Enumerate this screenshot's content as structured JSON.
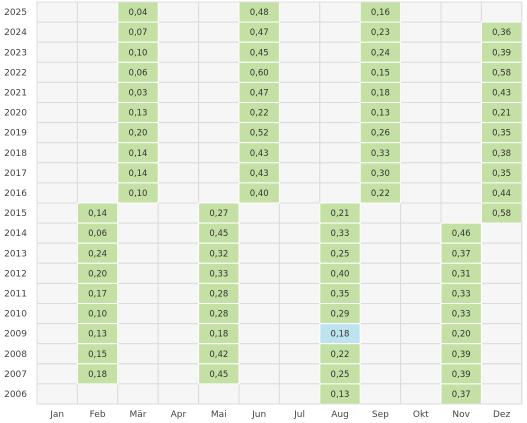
{
  "chart_data": {
    "type": "heatmap",
    "title": "",
    "xlabel": "",
    "ylabel": "",
    "grid": true,
    "x_categories": [
      "Jan",
      "Feb",
      "Mär",
      "Apr",
      "Mai",
      "Jun",
      "Jul",
      "Aug",
      "Sep",
      "Okt",
      "Nov",
      "Dez"
    ],
    "y_categories": [
      "2025",
      "2024",
      "2023",
      "2022",
      "2021",
      "2020",
      "2019",
      "2018",
      "2017",
      "2016",
      "2015",
      "2014",
      "2013",
      "2012",
      "2011",
      "2010",
      "2009",
      "2008",
      "2007",
      "2006"
    ],
    "cells": [
      {
        "year": "2025",
        "month": "Mär",
        "value": "0,04"
      },
      {
        "year": "2025",
        "month": "Jun",
        "value": "0,48"
      },
      {
        "year": "2025",
        "month": "Sep",
        "value": "0,16"
      },
      {
        "year": "2024",
        "month": "Mär",
        "value": "0,07"
      },
      {
        "year": "2024",
        "month": "Jun",
        "value": "0,47"
      },
      {
        "year": "2024",
        "month": "Sep",
        "value": "0,23"
      },
      {
        "year": "2024",
        "month": "Dez",
        "value": "0,36"
      },
      {
        "year": "2023",
        "month": "Mär",
        "value": "0,10"
      },
      {
        "year": "2023",
        "month": "Jun",
        "value": "0,45"
      },
      {
        "year": "2023",
        "month": "Sep",
        "value": "0,24"
      },
      {
        "year": "2023",
        "month": "Dez",
        "value": "0,39"
      },
      {
        "year": "2022",
        "month": "Mär",
        "value": "0,06"
      },
      {
        "year": "2022",
        "month": "Jun",
        "value": "0,60"
      },
      {
        "year": "2022",
        "month": "Sep",
        "value": "0,15"
      },
      {
        "year": "2022",
        "month": "Dez",
        "value": "0,58"
      },
      {
        "year": "2021",
        "month": "Mär",
        "value": "0,03"
      },
      {
        "year": "2021",
        "month": "Jun",
        "value": "0,47"
      },
      {
        "year": "2021",
        "month": "Sep",
        "value": "0,18"
      },
      {
        "year": "2021",
        "month": "Dez",
        "value": "0,43"
      },
      {
        "year": "2020",
        "month": "Mär",
        "value": "0,13"
      },
      {
        "year": "2020",
        "month": "Jun",
        "value": "0,22"
      },
      {
        "year": "2020",
        "month": "Sep",
        "value": "0,13"
      },
      {
        "year": "2020",
        "month": "Dez",
        "value": "0,21"
      },
      {
        "year": "2019",
        "month": "Mär",
        "value": "0,20"
      },
      {
        "year": "2019",
        "month": "Jun",
        "value": "0,52"
      },
      {
        "year": "2019",
        "month": "Sep",
        "value": "0,26"
      },
      {
        "year": "2019",
        "month": "Dez",
        "value": "0,35"
      },
      {
        "year": "2018",
        "month": "Mär",
        "value": "0,14"
      },
      {
        "year": "2018",
        "month": "Jun",
        "value": "0,43"
      },
      {
        "year": "2018",
        "month": "Sep",
        "value": "0,33"
      },
      {
        "year": "2018",
        "month": "Dez",
        "value": "0,38"
      },
      {
        "year": "2017",
        "month": "Mär",
        "value": "0,14"
      },
      {
        "year": "2017",
        "month": "Jun",
        "value": "0,43"
      },
      {
        "year": "2017",
        "month": "Sep",
        "value": "0,30"
      },
      {
        "year": "2017",
        "month": "Dez",
        "value": "0,35"
      },
      {
        "year": "2016",
        "month": "Mär",
        "value": "0,10"
      },
      {
        "year": "2016",
        "month": "Jun",
        "value": "0,40"
      },
      {
        "year": "2016",
        "month": "Sep",
        "value": "0,22"
      },
      {
        "year": "2016",
        "month": "Dez",
        "value": "0,44"
      },
      {
        "year": "2015",
        "month": "Feb",
        "value": "0,14"
      },
      {
        "year": "2015",
        "month": "Mai",
        "value": "0,27"
      },
      {
        "year": "2015",
        "month": "Aug",
        "value": "0,21"
      },
      {
        "year": "2015",
        "month": "Dez",
        "value": "0,58"
      },
      {
        "year": "2014",
        "month": "Feb",
        "value": "0,06"
      },
      {
        "year": "2014",
        "month": "Mai",
        "value": "0,45"
      },
      {
        "year": "2014",
        "month": "Aug",
        "value": "0,33"
      },
      {
        "year": "2014",
        "month": "Nov",
        "value": "0,46"
      },
      {
        "year": "2013",
        "month": "Feb",
        "value": "0,24"
      },
      {
        "year": "2013",
        "month": "Mai",
        "value": "0,32"
      },
      {
        "year": "2013",
        "month": "Aug",
        "value": "0,25"
      },
      {
        "year": "2013",
        "month": "Nov",
        "value": "0,37"
      },
      {
        "year": "2012",
        "month": "Feb",
        "value": "0,20"
      },
      {
        "year": "2012",
        "month": "Mai",
        "value": "0,33"
      },
      {
        "year": "2012",
        "month": "Aug",
        "value": "0,40"
      },
      {
        "year": "2012",
        "month": "Nov",
        "value": "0,31"
      },
      {
        "year": "2011",
        "month": "Feb",
        "value": "0,17"
      },
      {
        "year": "2011",
        "month": "Mai",
        "value": "0,28"
      },
      {
        "year": "2011",
        "month": "Aug",
        "value": "0,35"
      },
      {
        "year": "2011",
        "month": "Nov",
        "value": "0,33"
      },
      {
        "year": "2010",
        "month": "Feb",
        "value": "0,10"
      },
      {
        "year": "2010",
        "month": "Mai",
        "value": "0,28"
      },
      {
        "year": "2010",
        "month": "Aug",
        "value": "0,29"
      },
      {
        "year": "2010",
        "month": "Nov",
        "value": "0,33"
      },
      {
        "year": "2009",
        "month": "Feb",
        "value": "0,13"
      },
      {
        "year": "2009",
        "month": "Mai",
        "value": "0,18"
      },
      {
        "year": "2009",
        "month": "Aug",
        "value": "0,18",
        "highlight": true
      },
      {
        "year": "2009",
        "month": "Nov",
        "value": "0,20"
      },
      {
        "year": "2008",
        "month": "Feb",
        "value": "0,15"
      },
      {
        "year": "2008",
        "month": "Mai",
        "value": "0,42"
      },
      {
        "year": "2008",
        "month": "Aug",
        "value": "0,22"
      },
      {
        "year": "2008",
        "month": "Nov",
        "value": "0,39"
      },
      {
        "year": "2007",
        "month": "Feb",
        "value": "0,18"
      },
      {
        "year": "2007",
        "month": "Mai",
        "value": "0,45"
      },
      {
        "year": "2007",
        "month": "Aug",
        "value": "0,25"
      },
      {
        "year": "2007",
        "month": "Nov",
        "value": "0,39"
      },
      {
        "year": "2006",
        "month": "Aug",
        "value": "0,13"
      },
      {
        "year": "2006",
        "month": "Nov",
        "value": "0,37"
      }
    ]
  },
  "colors": {
    "cell_filled": "#c5e0a5",
    "cell_empty": "#f6f6f6",
    "cell_highlight": "#bde3ee",
    "grid_line": "#dcdcdc",
    "filled_border": "#aed08a"
  }
}
